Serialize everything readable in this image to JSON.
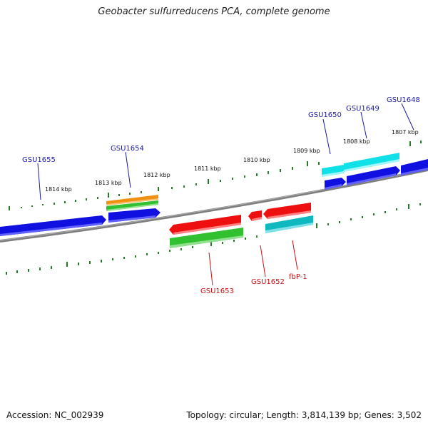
{
  "title": "Geobacter sulfurreducens PCA, complete genome",
  "footer": {
    "accession": "Accession: NC_002939",
    "topology": "Topology: circular; Length: 3,814,139 bp; Genes: 3,502"
  },
  "ruler_labels": [
    "1814 kbp",
    "1813 kbp",
    "1812 kbp",
    "1811 kbp",
    "1810 kbp",
    "1809 kbp",
    "1808 kbp",
    "1807 kbp"
  ],
  "gene_labels_top": [
    "GSU1655",
    "GSU1654",
    "GSU1650",
    "GSU1649",
    "GSU1648"
  ],
  "gene_labels_bottom": [
    "GSU1653",
    "GSU1652",
    "fbP-1"
  ],
  "colors": {
    "backbone": "#808080",
    "tick": "#2a7a2a",
    "label_top": "#1a1aa0",
    "label_bottom": "#cc1111",
    "blue": "#1010e0",
    "cyan": "#10e0e8",
    "teal": "#10b8c0",
    "red": "#ee1010",
    "green": "#30c030",
    "orange": "#f09010"
  }
}
